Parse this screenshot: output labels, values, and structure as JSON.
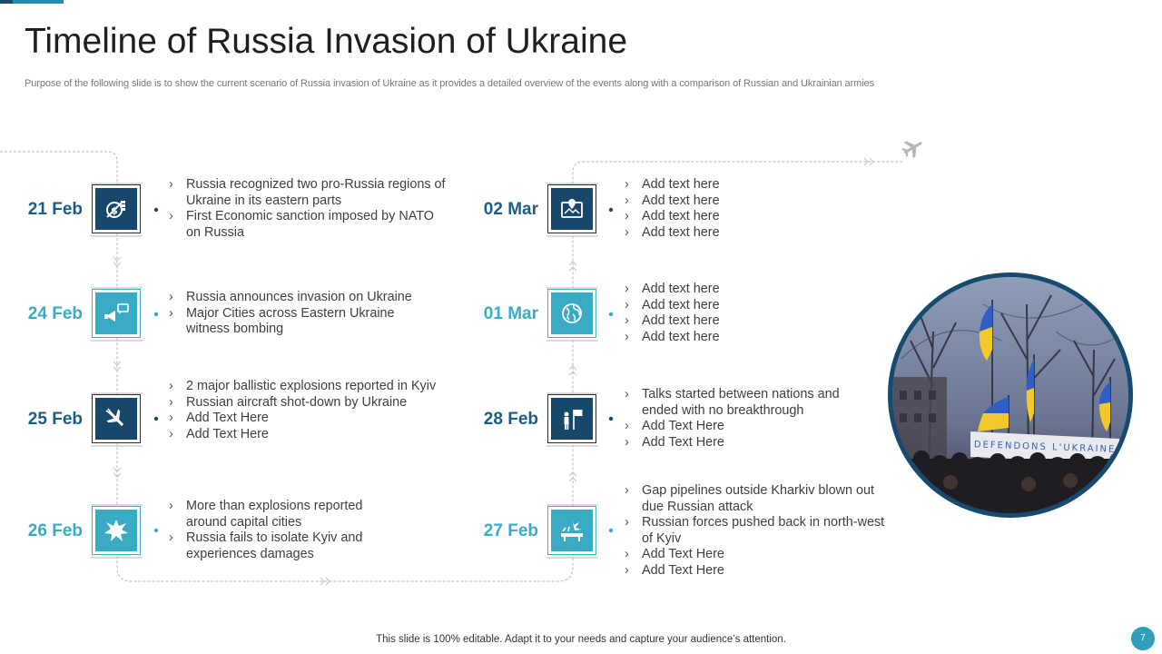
{
  "title": "Timeline of Russia Invasion of Ukraine",
  "subtitle": "Purpose of the following slide is to show the current scenario of Russia invasion of Ukraine as it provides a detailed overview of the events along with a comparison of Russian and Ukrainian armies",
  "left_column": [
    {
      "date": "21 Feb",
      "icon": "sanctions-icon",
      "bullets": [
        "Russia recognized two pro-Russia regions of Ukraine in its eastern parts",
        "First Economic sanction imposed by NATO on Russia"
      ]
    },
    {
      "date": "24 Feb",
      "icon": "announcement-icon",
      "bullets": [
        "Russia announces invasion on Ukraine",
        "Major Cities across Eastern Ukraine witness bombing"
      ]
    },
    {
      "date": "25 Feb",
      "icon": "aircraft-icon",
      "bullets": [
        "2 major ballistic explosions reported in Kyiv",
        "Russian aircraft shot-down by Ukraine",
        "Add Text Here",
        "Add Text Here"
      ]
    },
    {
      "date": "26 Feb",
      "icon": "explosion-icon",
      "bullets": [
        "More than explosions reported around capital cities",
        "Russia fails to isolate Kyiv and experiences damages"
      ]
    }
  ],
  "right_column": [
    {
      "date": "02 Mar",
      "icon": "map-pin-icon",
      "bullets": [
        "Add text here",
        "Add text here",
        "Add text here",
        "Add text here"
      ]
    },
    {
      "date": "01 Mar",
      "icon": "globe-icon",
      "bullets": [
        "Add text here",
        "Add text here",
        "Add text here",
        "Add text here"
      ]
    },
    {
      "date": "28 Feb",
      "icon": "talks-flag-icon",
      "bullets": [
        "Talks started between nations and ended with no breakthrough",
        "Add Text Here",
        "Add Text Here"
      ]
    },
    {
      "date": "27 Feb",
      "icon": "pipeline-blast-icon",
      "bullets": [
        "Gap pipelines outside Kharkiv blown out due Russian attack",
        "Russian forces pushed back in north-west of Kyiv",
        "Add Text Here",
        "Add Text Here"
      ]
    }
  ],
  "photo": {
    "banner_text": "DEFENDONS L'UKRAINE"
  },
  "footer": "This slide is 100% editable. Adapt it to your needs and capture your audience’s attention.",
  "page_number": "7",
  "colors": {
    "dark": "#17476b",
    "teal": "#3aabc4",
    "date_dark": "#1a5e86"
  }
}
